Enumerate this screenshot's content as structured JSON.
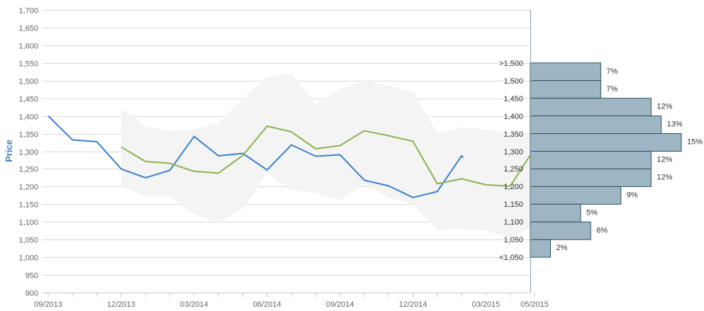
{
  "chart_data": {
    "type": "line",
    "title": "",
    "xlabel": "",
    "ylabel": "Price",
    "ylim": [
      900,
      1700
    ],
    "yticks": [
      "900",
      "950",
      "1,000",
      "1,050",
      "1,100",
      "1,150",
      "1,200",
      "1,250",
      "1,300",
      "1,350",
      "1,400",
      "1,450",
      "1,500",
      "1,550",
      "1,600",
      "1,650",
      "1,700"
    ],
    "xlim": [
      "2013-09-01",
      "2015-05-01"
    ],
    "xticks": [
      "09/2013",
      "12/2013",
      "03/2014",
      "06/2014",
      "09/2014",
      "12/2014",
      "03/2015",
      "05/2015"
    ],
    "grid": true,
    "series": [
      {
        "color": "#3a7fd1",
        "x": [
          "2013-09-01",
          "2013-10-01",
          "2013-11-01",
          "2013-12-01",
          "2014-01-01",
          "2014-02-01",
          "2014-03-01",
          "2014-04-01",
          "2014-05-01",
          "2014-06-01",
          "2014-07-01",
          "2014-08-01",
          "2014-09-01",
          "2014-10-01",
          "2014-11-01",
          "2014-12-01",
          "2015-01-01",
          "2015-02-01",
          "2015-02-03"
        ],
        "values": [
          1400,
          1332,
          1327,
          1250,
          1225,
          1246,
          1342,
          1287,
          1294,
          1247,
          1318,
          1286,
          1290,
          1218,
          1202,
          1169,
          1186,
          1287,
          1282
        ]
      },
      {
        "color": "#8bb34c",
        "x": [
          "2013-12-01",
          "2014-01-01",
          "2014-02-01",
          "2014-03-01",
          "2014-04-01",
          "2014-05-01",
          "2014-06-01",
          "2014-07-01",
          "2014-08-01",
          "2014-09-01",
          "2014-10-01",
          "2014-11-01",
          "2014-12-01",
          "2015-01-01",
          "2015-02-01",
          "2015-03-01",
          "2015-04-01",
          "2015-05-01"
        ],
        "values": [
          1312,
          1271,
          1266,
          1243,
          1238,
          1288,
          1371,
          1355,
          1307,
          1316,
          1358,
          1344,
          1328,
          1208,
          1222,
          1205,
          1201,
          1308
        ]
      }
    ],
    "band": {
      "color": "#f4f4f4",
      "x": [
        "2013-12-01",
        "2014-01-01",
        "2014-02-01",
        "2014-03-01",
        "2014-04-01",
        "2014-05-01",
        "2014-06-01",
        "2014-07-01",
        "2014-08-01",
        "2014-09-01",
        "2014-10-01",
        "2014-11-01",
        "2014-12-01",
        "2015-01-01",
        "2015-02-01",
        "2015-03-01",
        "2015-04-01",
        "2015-05-01"
      ],
      "upper": [
        1422,
        1370,
        1357,
        1362,
        1380,
        1448,
        1510,
        1520,
        1432,
        1476,
        1500,
        1485,
        1468,
        1352,
        1368,
        1362,
        1352,
        1352
      ],
      "lower": [
        1200,
        1174,
        1175,
        1122,
        1098,
        1138,
        1238,
        1190,
        1182,
        1162,
        1208,
        1168,
        1152,
        1077,
        1080,
        1075,
        1055,
        1090
      ]
    },
    "distribution": {
      "color": "#9eb6c4",
      "border": "#2f4f5f",
      "bins": [
        {
          "label": ">1,500",
          "value": 7,
          "text": "7%",
          "lo": 1500,
          "hi": 1550
        },
        {
          "label": "1,500",
          "value": 7,
          "text": "7%",
          "lo": 1450,
          "hi": 1500
        },
        {
          "label": "1,450",
          "value": 12,
          "text": "12%",
          "lo": 1400,
          "hi": 1450
        },
        {
          "label": "1,400",
          "value": 13,
          "text": "13%",
          "lo": 1350,
          "hi": 1400
        },
        {
          "label": "1,350",
          "value": 15,
          "text": "15%",
          "lo": 1300,
          "hi": 1350
        },
        {
          "label": "1,300",
          "value": 12,
          "text": "12%",
          "lo": 1250,
          "hi": 1300
        },
        {
          "label": "1,250",
          "value": 12,
          "text": "12%",
          "lo": 1200,
          "hi": 1250
        },
        {
          "label": "1,200",
          "value": 9,
          "text": "9%",
          "lo": 1150,
          "hi": 1200
        },
        {
          "label": "1,150",
          "value": 5,
          "text": "5%",
          "lo": 1100,
          "hi": 1150
        },
        {
          "label": "1,100",
          "value": 6,
          "text": "6%",
          "lo": 1050,
          "hi": 1100
        },
        {
          "label": "1,050",
          "value": 2,
          "text": "2%",
          "lo": 1000,
          "hi": 1050
        },
        {
          "label": "<1,050",
          "value": null,
          "text": "",
          "lo": 1000,
          "hi": 1000
        }
      ]
    }
  }
}
